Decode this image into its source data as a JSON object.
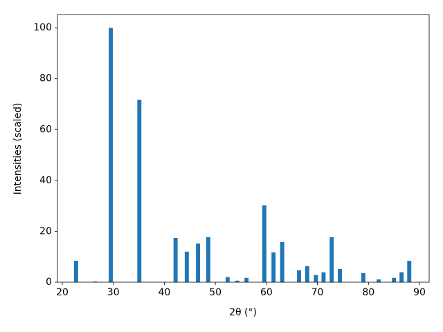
{
  "chart_data": {
    "type": "bar",
    "xlabel": "2θ (°)",
    "ylabel": "Intensities (scaled)",
    "x": [
      22.7,
      26.4,
      29.5,
      35.1,
      42.2,
      44.4,
      46.6,
      48.6,
      52.4,
      54.3,
      56.1,
      59.6,
      61.4,
      63.1,
      66.4,
      68.0,
      69.7,
      71.2,
      72.8,
      74.4,
      79.0,
      82.0,
      85.0,
      86.5,
      88.0
    ],
    "values": [
      8.4,
      0.3,
      100,
      71.7,
      17.4,
      12,
      15.2,
      17.7,
      2,
      0.6,
      1.7,
      30.2,
      11.7,
      15.8,
      4.7,
      6.3,
      2.8,
      3.9,
      17.7,
      5.2,
      3.6,
      1.1,
      1.7,
      3.9,
      8.4
    ],
    "color": "#1f77b4",
    "xlim": [
      19.05,
      91.9
    ],
    "xticks": [
      20,
      30,
      40,
      50,
      60,
      70,
      80,
      90
    ],
    "ylim": [
      0,
      105.2
    ],
    "yticks": [
      0,
      20,
      40,
      60,
      80,
      100
    ],
    "grid": false
  }
}
